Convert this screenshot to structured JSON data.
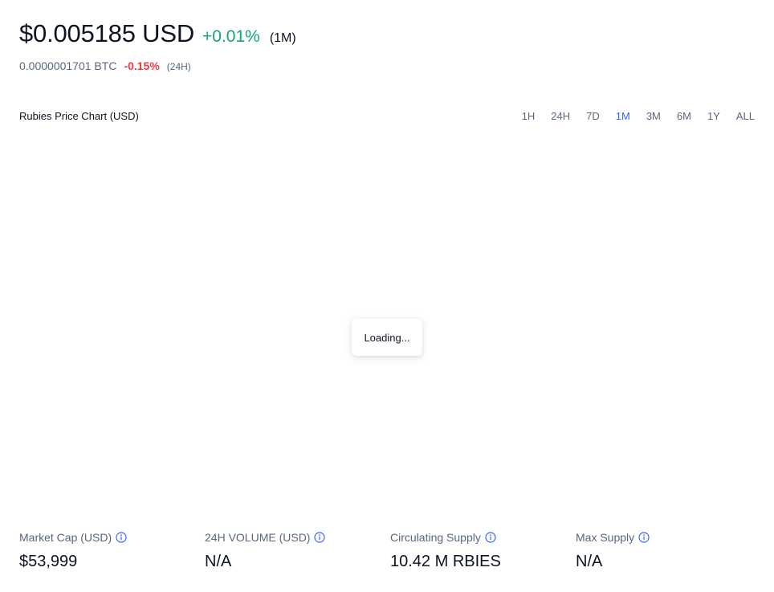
{
  "header": {
    "price": "$0.005185 USD",
    "change": "+0.01%",
    "change_period": "(1M)",
    "btc_price": "0.0000001701 BTC",
    "btc_change": "-0.15%",
    "btc_period": "(24H)"
  },
  "chart": {
    "title": "Rubies Price Chart (USD)",
    "loading_text": "Loading...",
    "ranges": [
      {
        "label": "1H",
        "active": false
      },
      {
        "label": "24H",
        "active": false
      },
      {
        "label": "7D",
        "active": false
      },
      {
        "label": "1M",
        "active": true
      },
      {
        "label": "3M",
        "active": false
      },
      {
        "label": "6M",
        "active": false
      },
      {
        "label": "1Y",
        "active": false
      },
      {
        "label": "ALL",
        "active": false
      }
    ]
  },
  "stats": [
    {
      "label": "Market Cap (USD)",
      "value": "$53,999",
      "icon": "info-icon"
    },
    {
      "label": "24H VOLUME (USD)",
      "value": "N/A",
      "icon": "info-icon"
    },
    {
      "label": "Circulating Supply",
      "value": "10.42 M RBIES",
      "icon": "info-icon"
    },
    {
      "label": "Max Supply",
      "value": "N/A",
      "icon": "info-icon"
    }
  ],
  "colors": {
    "positive": "#16a37e",
    "negative": "#ea3943",
    "accent": "#3861fb",
    "info_icon": "#3861fb"
  }
}
